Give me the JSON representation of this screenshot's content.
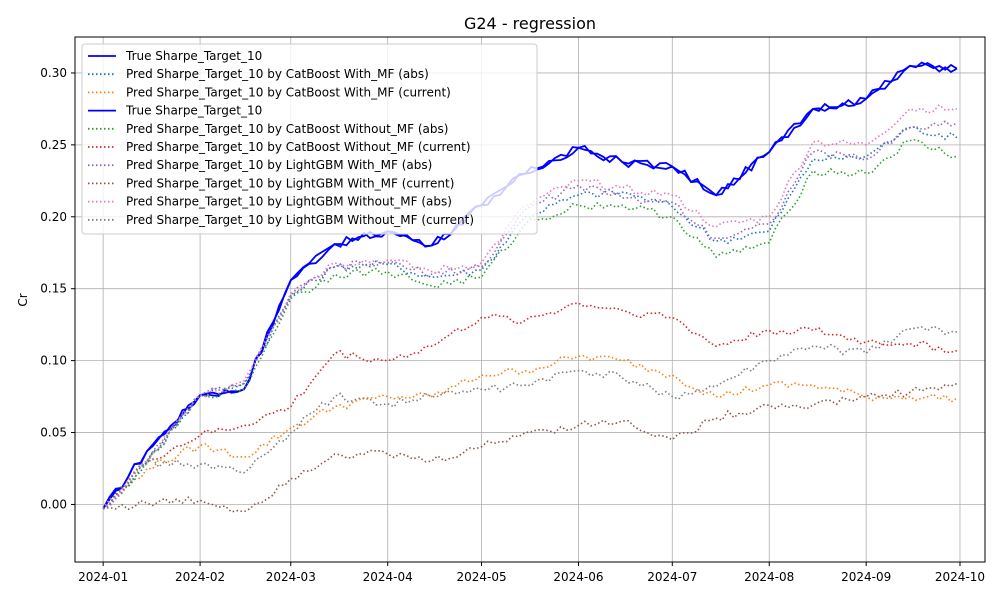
{
  "chart_data": {
    "type": "line",
    "title": "G24 - regression",
    "xlabel": "",
    "ylabel": "Cr",
    "x_ticks": [
      "2024-01",
      "2024-02",
      "2024-03",
      "2024-04",
      "2024-05",
      "2024-06",
      "2024-07",
      "2024-08",
      "2024-09",
      "2024-10"
    ],
    "y_ticks": [
      "0.00",
      "0.05",
      "0.10",
      "0.15",
      "0.20",
      "0.25",
      "0.30"
    ],
    "ylim": [
      -0.04,
      0.325
    ],
    "xlim": [
      "2023-12-23",
      "2024-10-09"
    ],
    "grid": true,
    "legend_position": "top-left",
    "x": [
      "2024-01-01",
      "2024-01-15",
      "2024-02-01",
      "2024-02-15",
      "2024-03-01",
      "2024-03-15",
      "2024-04-01",
      "2024-04-15",
      "2024-05-01",
      "2024-05-15",
      "2024-06-01",
      "2024-06-15",
      "2024-07-01",
      "2024-07-15",
      "2024-08-01",
      "2024-08-15",
      "2024-09-01",
      "2024-09-15",
      "2024-09-30"
    ],
    "series": [
      {
        "name": "True Sharpe_Target_10",
        "style": "solid",
        "color": "#0000ff",
        "values": [
          -0.003,
          0.037,
          0.076,
          0.08,
          0.156,
          0.181,
          0.19,
          0.18,
          0.208,
          0.23,
          0.248,
          0.238,
          0.235,
          0.215,
          0.245,
          0.275,
          0.282,
          0.305,
          0.303
        ]
      },
      {
        "name": "Pred Sharpe_Target_10 by CatBoost With_MF (abs)",
        "style": "dotted",
        "color": "#1f77b4",
        "values": [
          -0.003,
          0.03,
          0.076,
          0.084,
          0.145,
          0.165,
          0.167,
          0.158,
          0.163,
          0.2,
          0.215,
          0.217,
          0.207,
          0.183,
          0.19,
          0.24,
          0.242,
          0.262,
          0.255
        ]
      },
      {
        "name": "Pred Sharpe_Target_10 by CatBoost With_MF (current)",
        "style": "dotted",
        "color": "#ff7f0e",
        "values": [
          -0.003,
          0.025,
          0.041,
          0.033,
          0.053,
          0.068,
          0.075,
          0.075,
          0.09,
          0.093,
          0.103,
          0.1,
          0.09,
          0.075,
          0.083,
          0.083,
          0.075,
          0.075,
          0.074
        ]
      },
      {
        "name": "True Sharpe_Target_10",
        "style": "solid",
        "color": "#0000ff",
        "values": [
          -0.003,
          0.037,
          0.076,
          0.08,
          0.156,
          0.181,
          0.19,
          0.18,
          0.208,
          0.23,
          0.248,
          0.238,
          0.235,
          0.215,
          0.245,
          0.275,
          0.282,
          0.305,
          0.303
        ]
      },
      {
        "name": "Pred Sharpe_Target_10 by CatBoost Without_MF (abs)",
        "style": "dotted",
        "color": "#2ca02c",
        "values": [
          -0.003,
          0.028,
          0.076,
          0.08,
          0.143,
          0.16,
          0.162,
          0.152,
          0.158,
          0.195,
          0.208,
          0.208,
          0.2,
          0.172,
          0.182,
          0.232,
          0.23,
          0.253,
          0.242
        ]
      },
      {
        "name": "Pred Sharpe_Target_10 by CatBoost Without_MF (current)",
        "style": "dotted",
        "color": "#d62728",
        "values": [
          -0.003,
          0.03,
          0.048,
          0.055,
          0.068,
          0.105,
          0.1,
          0.11,
          0.13,
          0.128,
          0.14,
          0.135,
          0.13,
          0.11,
          0.121,
          0.121,
          0.113,
          0.112,
          0.107
        ]
      },
      {
        "name": "Pred Sharpe_Target_10 by LightGBM With_MF (abs)",
        "style": "dotted",
        "color": "#9467bd",
        "values": [
          -0.003,
          0.03,
          0.076,
          0.084,
          0.145,
          0.165,
          0.168,
          0.16,
          0.165,
          0.205,
          0.222,
          0.213,
          0.21,
          0.185,
          0.195,
          0.245,
          0.24,
          0.262,
          0.265
        ]
      },
      {
        "name": "Pred Sharpe_Target_10 by LightGBM With_MF (current)",
        "style": "dotted",
        "color": "#8c564b",
        "values": [
          -0.003,
          0.001,
          0.003,
          -0.005,
          0.018,
          0.035,
          0.035,
          0.03,
          0.04,
          0.05,
          0.055,
          0.058,
          0.045,
          0.06,
          0.069,
          0.069,
          0.075,
          0.078,
          0.084
        ]
      },
      {
        "name": "Pred Sharpe_Target_10 by LightGBM Without_MF (abs)",
        "style": "dotted",
        "color": "#e377c2",
        "values": [
          -0.003,
          0.03,
          0.076,
          0.086,
          0.147,
          0.168,
          0.17,
          0.162,
          0.168,
          0.208,
          0.225,
          0.22,
          0.215,
          0.193,
          0.2,
          0.252,
          0.25,
          0.275,
          0.275
        ]
      },
      {
        "name": "Pred Sharpe_Target_10 by LightGBM Without_MF (current)",
        "style": "dotted",
        "color": "#7f7f7f",
        "values": [
          -0.003,
          0.029,
          0.028,
          0.022,
          0.05,
          0.075,
          0.07,
          0.075,
          0.08,
          0.083,
          0.093,
          0.088,
          0.075,
          0.082,
          0.1,
          0.11,
          0.105,
          0.122,
          0.12
        ]
      }
    ]
  }
}
